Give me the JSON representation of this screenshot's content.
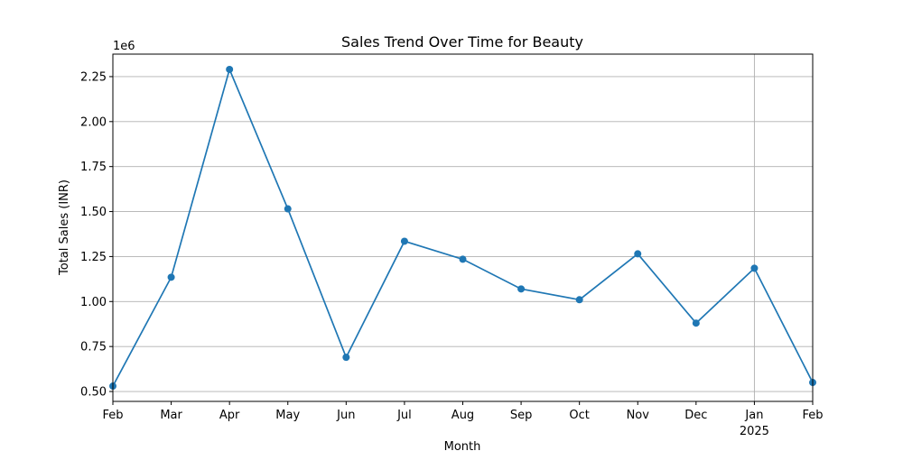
{
  "chart_data": {
    "type": "line",
    "title": "Sales Trend Over Time for Beauty",
    "xlabel": "Month",
    "ylabel": "Total Sales (INR)",
    "y_multiplier_label": "1e6",
    "x": [
      "2024-02",
      "2024-03",
      "2024-04",
      "2024-05",
      "2024-06",
      "2024-07",
      "2024-08",
      "2024-09",
      "2024-10",
      "2024-11",
      "2024-12",
      "2025-01",
      "2025-02"
    ],
    "x_tick_labels": [
      "Feb",
      "Mar",
      "Apr",
      "May",
      "Jun",
      "Jul",
      "Aug",
      "Sep",
      "Oct",
      "Nov",
      "Dec",
      "Jan",
      "Feb"
    ],
    "x_tick_sublabels": [
      "",
      "",
      "",
      "",
      "",
      "",
      "",
      "",
      "",
      "",
      "",
      "2025",
      ""
    ],
    "series": [
      {
        "values": [
          530000,
          1135000,
          2290000,
          1515000,
          690000,
          1335000,
          1235000,
          1070000,
          1010000,
          1265000,
          880000,
          1185000,
          550000
        ]
      }
    ],
    "y_ticks": [
      "0.50",
      "0.75",
      "1.00",
      "1.25",
      "1.50",
      "1.75",
      "2.00",
      "2.25"
    ],
    "y_tick_values": [
      500000,
      750000,
      1000000,
      1250000,
      1500000,
      1750000,
      2000000,
      2250000
    ],
    "ylim": [
      445000,
      2375000
    ],
    "grid": true,
    "color": "#1f77b4"
  }
}
